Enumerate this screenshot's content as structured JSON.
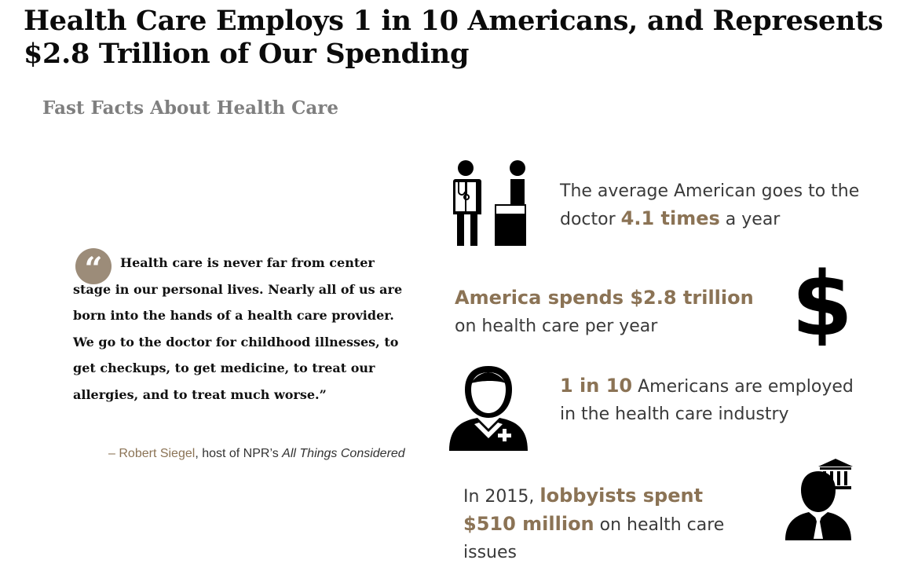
{
  "title": "Health Care Employs 1 in 10 Americans, and Represents $2.8 Trillion of Our Spending",
  "subtitle": "Fast Facts About Health Care",
  "quote": {
    "mark": "“",
    "text": "Health care is never far from center stage in our personal lives. Nearly all of us are born into the hands of a health care provider. We go to the doctor for childhood illnesses, to get checkups, to get medicine, to treat our allergies, and to treat much worse.”",
    "dash": "–",
    "author": "Robert Siegel",
    "role": ", host of NPR’s ",
    "show": "All Things Considered"
  },
  "facts": {
    "doctor": {
      "pre": "The average American goes to the doctor ",
      "highlight": "4.1 times",
      "post": " a year",
      "icon": "doctor-patient-icon"
    },
    "spending": {
      "highlight": "America spends $2.8 trillion",
      "post": " on health care per year",
      "icon": "dollar-sign-icon"
    },
    "employment": {
      "highlight": "1 in 10",
      "post": " Americans are employed in the health care industry",
      "icon": "health-worker-icon"
    },
    "lobbying": {
      "pre": "In 2015, ",
      "highlight": "lobbyists spent $510 million",
      "post": " on health care issues",
      "icon": "lobbyist-government-icon"
    }
  },
  "colors": {
    "accent": "#8b7355",
    "quote_circle": "#9c8c79",
    "subtitle": "#7f7f7f",
    "title": "#0b0b0b"
  }
}
